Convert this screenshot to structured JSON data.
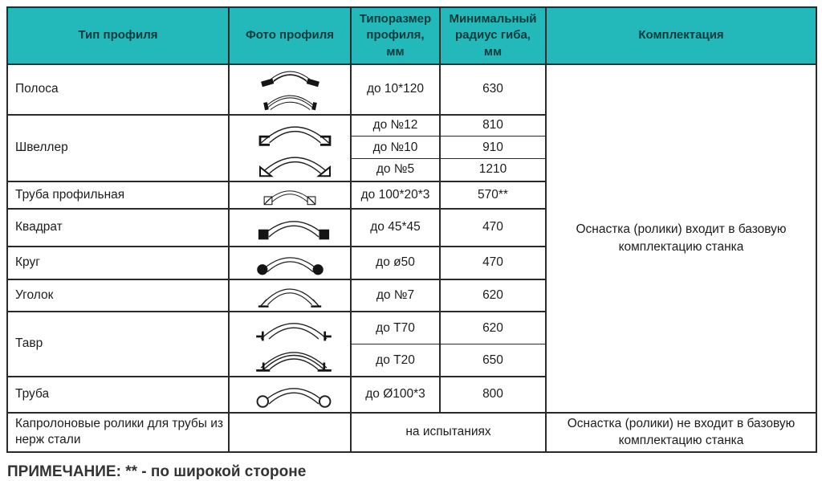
{
  "note": "ПРИМЕЧАНИЕ: ** - по широкой стороне",
  "colors": {
    "header_bg": "#23B9BB",
    "border": "#2a2a2a",
    "text": "#1c1c1c"
  },
  "table": {
    "headers": [
      "Тип профиля",
      "Фото профиля",
      "Типоразмер профиля, мм",
      "Минимальный радиус гиба, мм",
      "Комплектация"
    ],
    "rows": [
      {
        "type": "Полоса",
        "photos": [
          "strip-flat-icon",
          "strip-edge-icon"
        ],
        "specs": [
          {
            "size": "до 10*120",
            "radius": "630"
          }
        ]
      },
      {
        "type": "Швеллер",
        "photos": [
          "channel-down-icon",
          "channel-up-icon"
        ],
        "specs": [
          {
            "size": "до №12",
            "radius": "810"
          },
          {
            "size": "до №10",
            "radius": "910"
          },
          {
            "size": "до №5",
            "radius": "1210"
          }
        ]
      },
      {
        "type": "Труба профильная",
        "photos": [
          "square-tube-icon"
        ],
        "specs": [
          {
            "size": "до 100*20*3",
            "radius": "570**"
          }
        ]
      },
      {
        "type": "Квадрат",
        "photos": [
          "square-bar-icon"
        ],
        "specs": [
          {
            "size": "до 45*45",
            "radius": "470"
          }
        ]
      },
      {
        "type": "Круг",
        "photos": [
          "round-bar-icon"
        ],
        "specs": [
          {
            "size": "до ø50",
            "radius": "470"
          }
        ]
      },
      {
        "type": "Уголок",
        "photos": [
          "angle-icon"
        ],
        "specs": [
          {
            "size": "до №7",
            "radius": "620"
          }
        ]
      },
      {
        "type": "Тавр",
        "photos": [
          "tee-up-icon",
          "tee-down-icon"
        ],
        "specs": [
          {
            "size": "до Т70",
            "radius": "620"
          },
          {
            "size": "до Т20",
            "radius": "650"
          }
        ]
      },
      {
        "type": "Труба",
        "photos": [
          "pipe-icon"
        ],
        "specs": [
          {
            "size": "до Ø100*3",
            "radius": "800"
          }
        ]
      },
      {
        "type": "Капролоновые ролики для трубы из нерж стали",
        "photos": [],
        "status": "на испытаниях"
      }
    ],
    "equipment": [
      {
        "text": "Оснастка (ролики) входит в базовую комплектацию станка",
        "profile_from": 0,
        "profile_to": 7
      },
      {
        "text": "Оснастка (ролики)  не входит в базовую комплектацию станка",
        "profile_from": 8,
        "profile_to": 8
      }
    ]
  }
}
